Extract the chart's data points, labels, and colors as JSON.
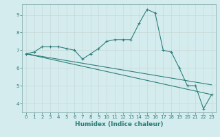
{
  "xlabel": "Humidex (Indice chaleur)",
  "ylabel": "",
  "bg_color": "#d4ecee",
  "grid_color": "#c0d8da",
  "line_color": "#2d7d78",
  "xlim": [
    -0.5,
    23.5
  ],
  "ylim": [
    3.5,
    9.6
  ],
  "yticks": [
    4,
    5,
    6,
    7,
    8,
    9
  ],
  "xticks": [
    0,
    1,
    2,
    3,
    4,
    5,
    6,
    7,
    8,
    9,
    10,
    11,
    12,
    13,
    14,
    15,
    16,
    17,
    18,
    19,
    20,
    21,
    22,
    23
  ],
  "series": [
    [
      0,
      6.8
    ],
    [
      1,
      6.9
    ],
    [
      2,
      7.2
    ],
    [
      3,
      7.2
    ],
    [
      4,
      7.2
    ],
    [
      5,
      7.1
    ],
    [
      6,
      7.0
    ],
    [
      7,
      6.5
    ],
    [
      8,
      6.8
    ],
    [
      9,
      7.1
    ],
    [
      10,
      7.5
    ],
    [
      11,
      7.6
    ],
    [
      12,
      7.6
    ],
    [
      13,
      7.6
    ],
    [
      14,
      8.5
    ],
    [
      15,
      9.3
    ],
    [
      16,
      9.1
    ],
    [
      17,
      7.0
    ],
    [
      18,
      6.9
    ],
    [
      19,
      6.0
    ],
    [
      20,
      5.0
    ],
    [
      21,
      5.0
    ],
    [
      22,
      3.7
    ],
    [
      23,
      4.5
    ]
  ],
  "trend_line": [
    [
      0,
      6.8
    ],
    [
      23,
      4.5
    ]
  ],
  "trend_line2": [
    [
      0,
      6.8
    ],
    [
      23,
      5.05
    ]
  ]
}
